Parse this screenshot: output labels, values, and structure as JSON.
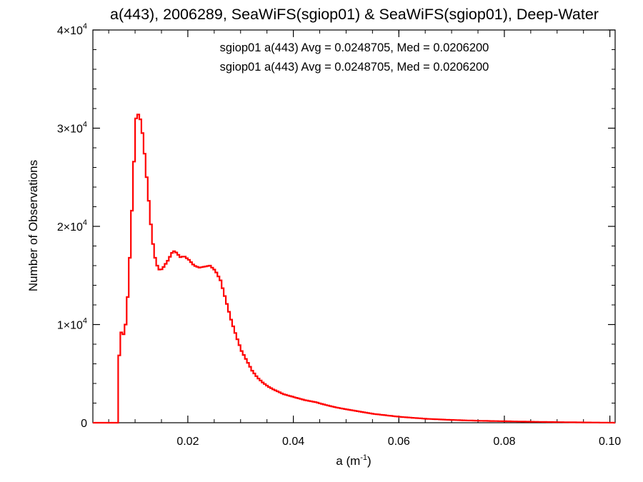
{
  "chart_data": {
    "type": "line",
    "title": "a(443), 2006289, SeaWiFS(sgiop01) & SeaWiFS(sgiop01), Deep-Water",
    "xlabel_base": "a (m",
    "xlabel_exp": "-1",
    "xlabel_close": ")",
    "ylabel": "Number of Observations",
    "xlim": [
      0.002,
      0.101
    ],
    "ylim": [
      0,
      40000
    ],
    "x_ticks": [
      {
        "value": 0.02,
        "label": "0.02"
      },
      {
        "value": 0.04,
        "label": "0.04"
      },
      {
        "value": 0.06,
        "label": "0.06"
      },
      {
        "value": 0.08,
        "label": "0.08"
      },
      {
        "value": 0.1,
        "label": "0.10"
      }
    ],
    "y_ticks": [
      {
        "value": 0,
        "label": "0",
        "mantissa": "",
        "exponent": ""
      },
      {
        "value": 10000,
        "label": "",
        "mantissa": "1×10",
        "exponent": "4"
      },
      {
        "value": 20000,
        "label": "",
        "mantissa": "2×10",
        "exponent": "4"
      },
      {
        "value": 30000,
        "label": "",
        "mantissa": "3×10",
        "exponent": "4"
      },
      {
        "value": 40000,
        "label": "",
        "mantissa": "4×10",
        "exponent": "4"
      }
    ],
    "annotations": [
      {
        "text": "sgiop01 a(443) Avg = 0.0248705, Med = 0.0206200",
        "color": "#000000"
      },
      {
        "text": "sgiop01 a(443) Avg = 0.0248705, Med = 0.0206200",
        "color": "#ff0000"
      }
    ],
    "series": [
      {
        "color": "#ff0000",
        "x": [
          0.002,
          0.0069,
          0.0072,
          0.0076,
          0.008,
          0.0085,
          0.009,
          0.0095,
          0.01,
          0.0105,
          0.011,
          0.0115,
          0.012,
          0.0125,
          0.013,
          0.0135,
          0.014,
          0.0145,
          0.015,
          0.016,
          0.017,
          0.0175,
          0.018,
          0.0185,
          0.019,
          0.02,
          0.021,
          0.022,
          0.023,
          0.024,
          0.025,
          0.026,
          0.0265,
          0.027,
          0.028,
          0.029,
          0.03,
          0.031,
          0.032,
          0.033,
          0.034,
          0.035,
          0.036,
          0.037,
          0.038,
          0.04,
          0.042,
          0.044,
          0.046,
          0.048,
          0.05,
          0.055,
          0.06,
          0.065,
          0.07,
          0.075,
          0.08,
          0.085,
          0.09,
          0.095,
          0.1,
          0.101
        ],
        "y": [
          0,
          7000,
          9200,
          9000,
          10000,
          13500,
          19000,
          25500,
          31000,
          31500,
          30500,
          28000,
          25000,
          22000,
          19000,
          17000,
          16000,
          15500,
          15700,
          16500,
          17500,
          17400,
          17100,
          16800,
          17000,
          16600,
          16000,
          15800,
          15900,
          16000,
          15500,
          14500,
          13500,
          12500,
          10500,
          8800,
          7300,
          6300,
          5300,
          4600,
          4100,
          3700,
          3400,
          3150,
          2900,
          2600,
          2300,
          2100,
          1800,
          1550,
          1350,
          900,
          600,
          400,
          280,
          200,
          150,
          100,
          60,
          30,
          10,
          0
        ]
      }
    ]
  }
}
